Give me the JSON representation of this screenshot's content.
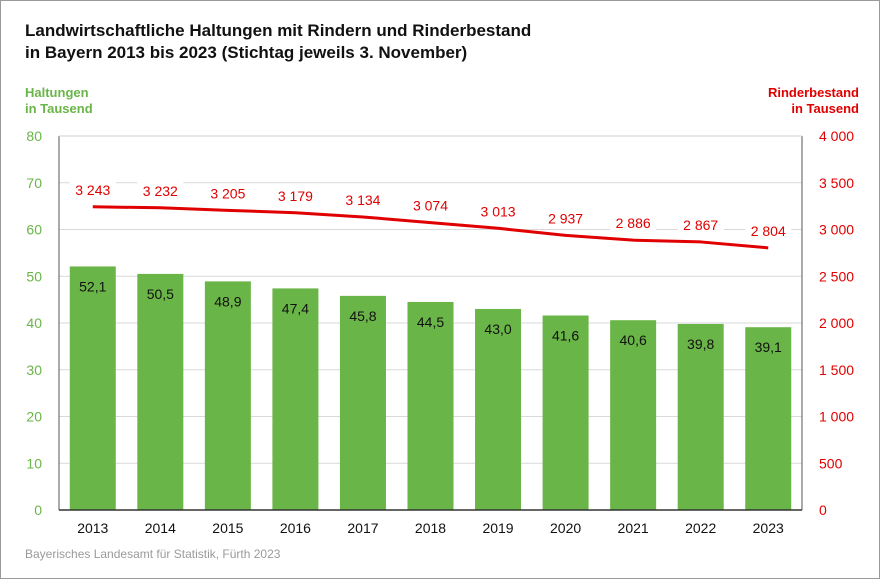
{
  "title": {
    "line1": "Landwirtschaftliche Haltungen mit Rindern und Rinderbestand",
    "line2": "in Bayern 2013 bis 2023 (Stichtag jeweils 3. November)"
  },
  "axes": {
    "left_title_line1": "Haltungen",
    "left_title_line2": "in Tausend",
    "right_title_line1": "Rinderbestand",
    "right_title_line2": "in Tausend"
  },
  "source": "Bayerisches Landesamt für Statistik, Fürth 2023",
  "colors": {
    "bar": "#6ab547",
    "line": "#e10000",
    "left_axis": "#6ab547",
    "right_axis": "#e10000",
    "grid": "#d9d9d9",
    "title": "#111111",
    "source": "#9a9a9a"
  },
  "chart_data": {
    "type": "bar",
    "categories": [
      "2013",
      "2014",
      "2015",
      "2016",
      "2017",
      "2018",
      "2019",
      "2020",
      "2021",
      "2022",
      "2023"
    ],
    "series": [
      {
        "name": "Haltungen",
        "type": "bar",
        "axis": "left",
        "values": [
          52.1,
          50.5,
          48.9,
          47.4,
          45.8,
          44.5,
          43.0,
          41.6,
          40.6,
          39.8,
          39.1
        ],
        "labels": [
          "52,1",
          "50,5",
          "48,9",
          "47,4",
          "45,8",
          "44,5",
          "43,0",
          "41,6",
          "40,6",
          "39,8",
          "39,1"
        ]
      },
      {
        "name": "Rinderbestand",
        "type": "line",
        "axis": "right",
        "values": [
          3243,
          3232,
          3205,
          3179,
          3134,
          3074,
          3013,
          2937,
          2886,
          2867,
          2804
        ],
        "labels": [
          "3 243",
          "3 232",
          "3 205",
          "3 179",
          "3 134",
          "3 074",
          "3 013",
          "2 937",
          "2 886",
          "2 867",
          "2 804"
        ]
      }
    ],
    "left_axis": {
      "ylim": [
        0,
        80
      ],
      "ticks": [
        "0",
        "10",
        "20",
        "30",
        "40",
        "50",
        "60",
        "70",
        "80"
      ]
    },
    "right_axis": {
      "ylim": [
        0,
        4000
      ],
      "ticks": [
        "0",
        "500",
        "1 000",
        "1 500",
        "2 000",
        "2 500",
        "3 000",
        "3 500",
        "4 000"
      ]
    },
    "grid": true
  }
}
